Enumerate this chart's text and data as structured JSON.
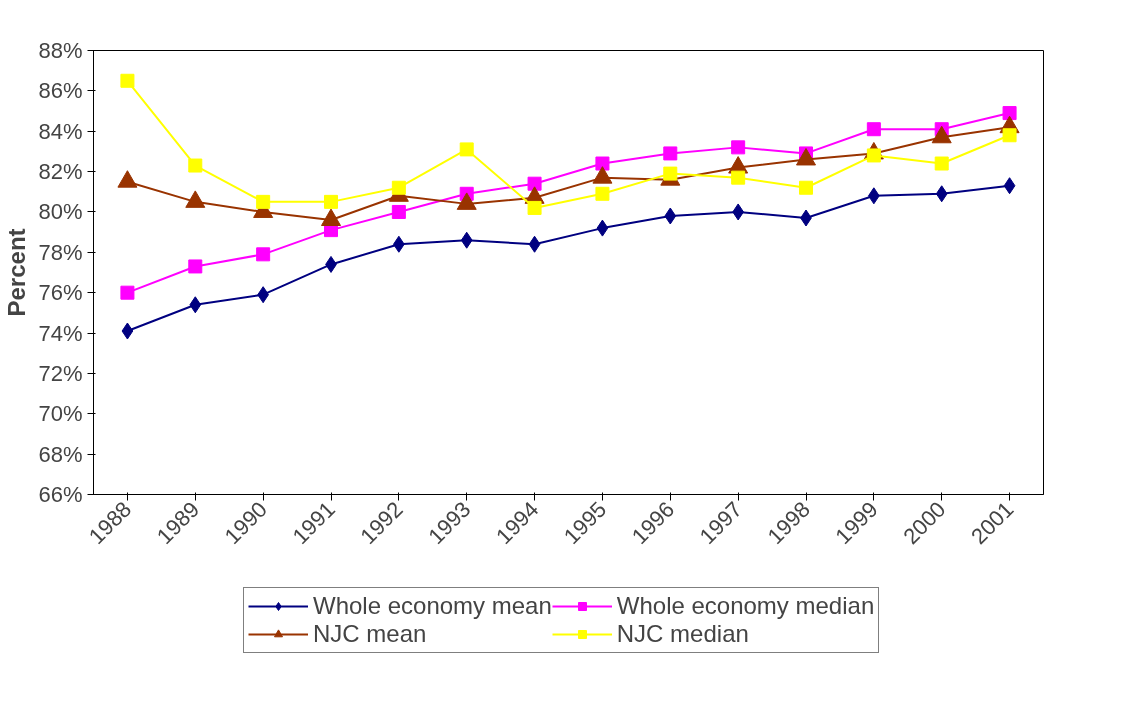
{
  "chart_data": {
    "type": "line",
    "ylabel": "Percent",
    "categories": [
      "1988",
      "1989",
      "1990",
      "1991",
      "1992",
      "1993",
      "1994",
      "1995",
      "1996",
      "1997",
      "1998",
      "1999",
      "2000",
      "2001"
    ],
    "ylim": [
      66,
      88
    ],
    "yticks": [
      {
        "value": 66,
        "label": "66%"
      },
      {
        "value": 68,
        "label": "68%"
      },
      {
        "value": 70,
        "label": "70%"
      },
      {
        "value": 72,
        "label": "72%"
      },
      {
        "value": 74,
        "label": "74%"
      },
      {
        "value": 76,
        "label": "76%"
      },
      {
        "value": 78,
        "label": "78%"
      },
      {
        "value": 80,
        "label": "80%"
      },
      {
        "value": 82,
        "label": "82%"
      },
      {
        "value": 84,
        "label": "84%"
      },
      {
        "value": 86,
        "label": "86%"
      },
      {
        "value": 88,
        "label": "88%"
      }
    ],
    "grid": false,
    "legend": "bottom",
    "line_style": "solid",
    "series": [
      {
        "name": "Whole economy mean",
        "color": "#000080",
        "marker": "diamond",
        "values": [
          74.1,
          75.4,
          75.9,
          77.4,
          78.4,
          78.6,
          78.4,
          79.2,
          79.8,
          80.0,
          79.7,
          80.8,
          80.9,
          81.3
        ]
      },
      {
        "name": "Whole economy median",
        "color": "#ff00ff",
        "marker": "square",
        "values": [
          76.0,
          77.3,
          77.9,
          79.1,
          80.0,
          80.9,
          81.4,
          82.4,
          82.9,
          83.2,
          82.9,
          84.1,
          84.1,
          84.9
        ]
      },
      {
        "name": "NJC mean",
        "color": "#993300",
        "marker": "triangle",
        "values": [
          81.5,
          80.5,
          80.0,
          79.6,
          80.8,
          80.4,
          80.7,
          81.7,
          81.6,
          82.2,
          82.6,
          82.9,
          83.7,
          84.2
        ]
      },
      {
        "name": "NJC median",
        "color": "#ffff00",
        "marker": "square",
        "values": [
          86.5,
          82.3,
          80.5,
          80.5,
          81.2,
          83.1,
          80.2,
          80.9,
          81.9,
          81.7,
          81.2,
          82.8,
          82.4,
          83.8
        ]
      }
    ]
  }
}
